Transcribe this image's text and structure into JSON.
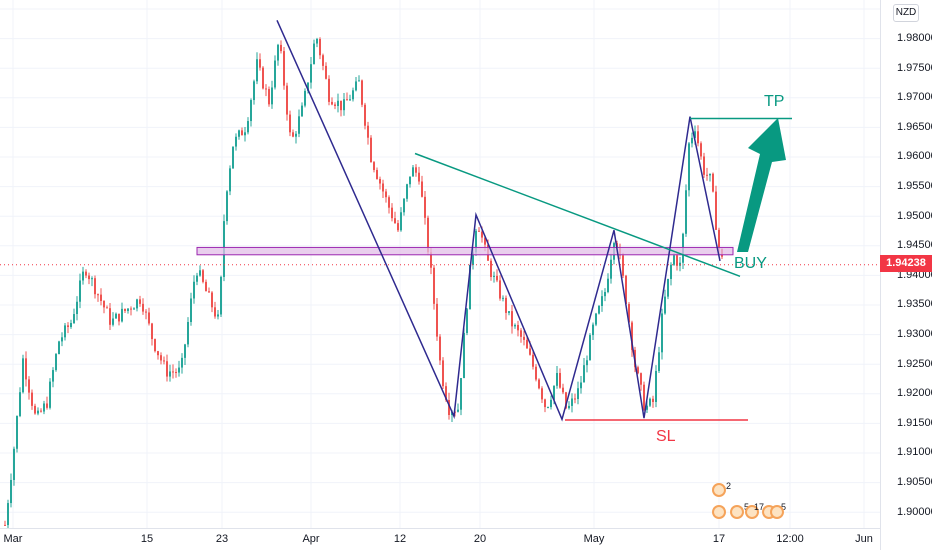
{
  "symbol": {
    "currency": "NZD"
  },
  "price_axis": {
    "ticks": [
      "1.98000",
      "1.97500",
      "1.97000",
      "1.96500",
      "1.96000",
      "1.95500",
      "1.95000",
      "1.94500",
      "1.94000",
      "1.93500",
      "1.93000",
      "1.92500",
      "1.92000",
      "1.91500",
      "1.91000",
      "1.90500",
      "1.90000"
    ],
    "top_partial": "1"
  },
  "current_price": {
    "label": "1.94238",
    "color": "#f23645"
  },
  "time_axis": {
    "ticks": [
      "Mar",
      "15",
      "23",
      "Apr",
      "12",
      "20",
      "May",
      "17",
      "12:00",
      "Jun"
    ]
  },
  "annotations": {
    "tp": {
      "text": "TP",
      "color": "#089981"
    },
    "buy": {
      "text": "BUY",
      "color": "#089981"
    },
    "sl": {
      "text": "SL",
      "color": "#f23645"
    }
  },
  "events": {
    "top_count": "2",
    "bottom_counts": [
      "5",
      "17",
      "5"
    ]
  },
  "colors": {
    "up_candle": "#26a69a",
    "down_candle": "#ef5350",
    "trendline_blue": "#2f2a8f",
    "trendline_teal": "#089981",
    "zone_fill": "#e1bee7",
    "zone_border": "#9c27b0",
    "sl_line": "#f23645"
  },
  "chart_data": {
    "type": "candlestick",
    "price_range": [
      1.8995,
      1.9855
    ],
    "key_points": [
      {
        "label": "early March low",
        "price": 1.9
      },
      {
        "label": "late March peak",
        "price": 1.982
      },
      {
        "label": "mid-April low",
        "price": 1.9175
      },
      {
        "label": "late-April low",
        "price": 1.917
      },
      {
        "label": "mid-May high",
        "price": 1.9665
      },
      {
        "label": "current",
        "price": 1.94238
      }
    ],
    "levels": {
      "take_profit": 1.9662,
      "stop_loss": 1.9171,
      "support_zone": [
        1.944,
        1.9452
      ]
    }
  }
}
